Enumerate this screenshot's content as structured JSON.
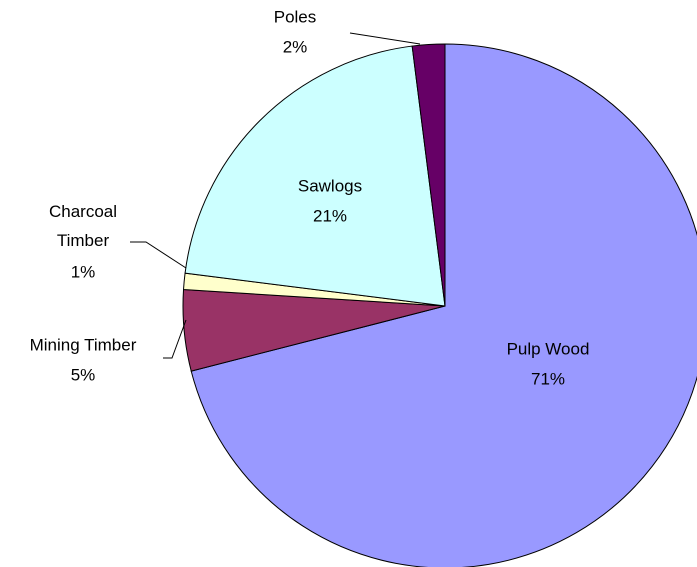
{
  "chart_data": {
    "type": "pie",
    "categories": [
      "Pulp Wood",
      "Mining Timber",
      "Charcoal Timber",
      "Sawlogs",
      "Poles"
    ],
    "values": [
      71,
      5,
      1,
      21,
      2
    ],
    "value_labels": [
      "71%",
      "5%",
      "1%",
      "21%",
      "2%"
    ],
    "colors": [
      "#9999ff",
      "#993366",
      "#ffffcc",
      "#ccffff",
      "#660066"
    ]
  }
}
